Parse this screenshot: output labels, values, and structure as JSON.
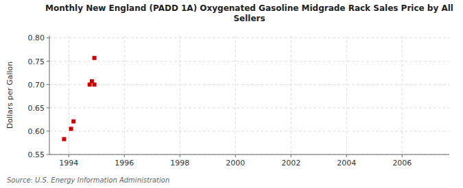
{
  "chart_data": {
    "type": "scatter",
    "title": "Monthly New England (PADD 1A) Oxygenated Gasoline Midgrade Rack Sales Price by All\nSellers",
    "ylabel": "Dollars per Gallon",
    "source": "Source: U.S. Energy Information Administration",
    "color": "#cc0000",
    "marker": "square",
    "grid": true,
    "x": [
      1993.83,
      1994.08,
      1994.17,
      1994.75,
      1994.83,
      1994.92,
      1994.92
    ],
    "values": [
      0.583,
      0.605,
      0.621,
      0.7,
      0.707,
      0.757,
      0.7
    ],
    "xlim": [
      1993.3,
      2007.7
    ],
    "ylim": [
      0.55,
      0.805
    ],
    "xticks": [
      1994,
      1996,
      1998,
      2000,
      2002,
      2004,
      2006
    ],
    "yticks": [
      0.55,
      {
        "value": 0.6,
        "label": "0.60"
      },
      0.65,
      {
        "value": 0.7,
        "label": "0.70"
      },
      0.75,
      {
        "value": 0.8,
        "label": "0.80"
      }
    ]
  }
}
